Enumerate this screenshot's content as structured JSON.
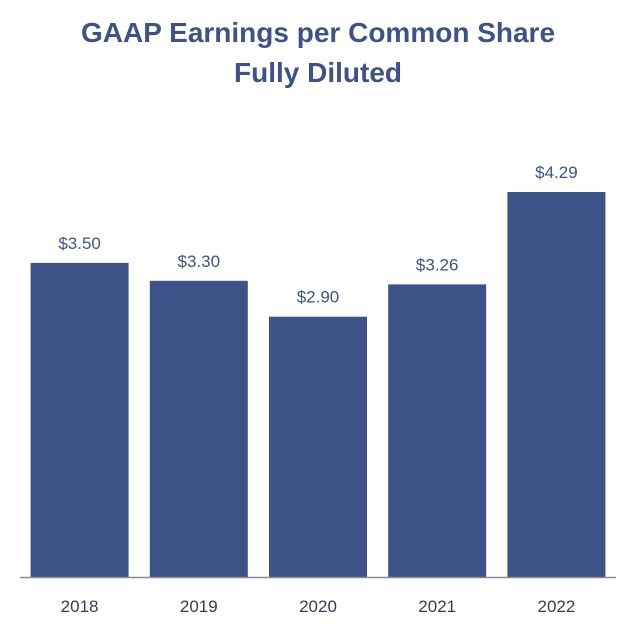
{
  "chart_data": {
    "type": "bar",
    "title": [
      "GAAP Earnings per Common Share",
      "Fully Diluted"
    ],
    "categories": [
      "2018",
      "2019",
      "2020",
      "2021",
      "2022"
    ],
    "values": [
      3.5,
      3.3,
      2.9,
      3.26,
      4.29
    ],
    "data_labels": [
      "$3.50",
      "$3.30",
      "$2.90",
      "$3.26",
      "$4.29"
    ],
    "xlabel": "",
    "ylabel": "",
    "ylim": [
      0,
      4.29
    ],
    "grid": false,
    "legend": "none",
    "bar_color": "#3d5286",
    "axis_color": "#8c8c8c"
  }
}
